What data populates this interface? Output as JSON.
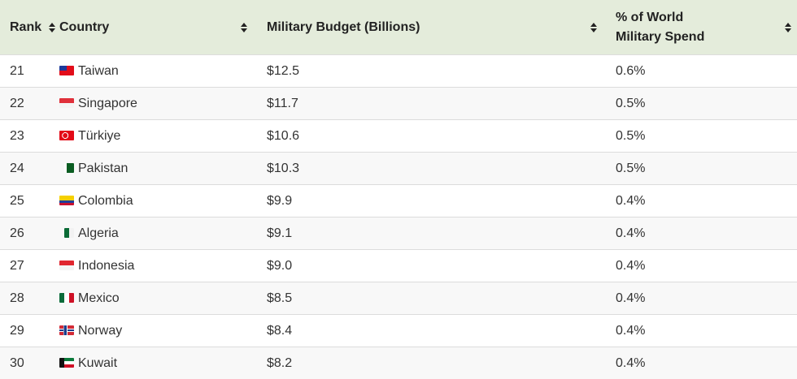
{
  "table": {
    "headers": {
      "rank": "Rank",
      "country": "Country",
      "budget": "Military Budget (Billions)",
      "pct_line1": "% of World",
      "pct_line2": "Military Spend"
    },
    "sort_icon": "sort-arrows-icon",
    "header_bg": "#e4ecdb",
    "rows": [
      {
        "rank": "21",
        "country": "Taiwan",
        "flag": "taiwan",
        "budget": "$12.5",
        "pct": "0.6%"
      },
      {
        "rank": "22",
        "country": "Singapore",
        "flag": "singapore",
        "budget": "$11.7",
        "pct": "0.5%"
      },
      {
        "rank": "23",
        "country": "Türkiye",
        "flag": "turkiye",
        "budget": "$10.6",
        "pct": "0.5%"
      },
      {
        "rank": "24",
        "country": "Pakistan",
        "flag": "pakistan",
        "budget": "$10.3",
        "pct": "0.5%"
      },
      {
        "rank": "25",
        "country": "Colombia",
        "flag": "colombia",
        "budget": "$9.9",
        "pct": "0.4%"
      },
      {
        "rank": "26",
        "country": "Algeria",
        "flag": "algeria",
        "budget": "$9.1",
        "pct": "0.4%"
      },
      {
        "rank": "27",
        "country": "Indonesia",
        "flag": "indonesia",
        "budget": "$9.0",
        "pct": "0.4%"
      },
      {
        "rank": "28",
        "country": "Mexico",
        "flag": "mexico",
        "budget": "$8.5",
        "pct": "0.4%"
      },
      {
        "rank": "29",
        "country": "Norway",
        "flag": "norway",
        "budget": "$8.4",
        "pct": "0.4%"
      },
      {
        "rank": "30",
        "country": "Kuwait",
        "flag": "kuwait",
        "budget": "$8.2",
        "pct": "0.4%"
      }
    ]
  }
}
